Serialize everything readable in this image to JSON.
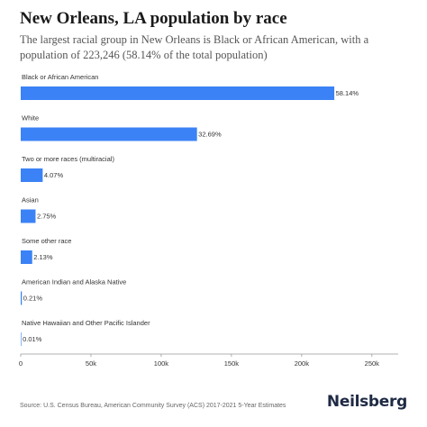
{
  "title": "New Orleans, LA population by race",
  "subtitle": "The largest racial group in New Orleans is Black or African American, with a population of 223,246 (58.14% of the total population)",
  "source": "Source: U.S. Census Bureau, American Community Survey (ACS) 2017-2021 5-Year Estimates",
  "brand": "Neilsberg",
  "colors": {
    "bar": "#3b82f6",
    "axis": "#999999",
    "text": "#333333"
  },
  "chart_data": {
    "type": "bar",
    "orientation": "horizontal",
    "categories": [
      "Black or African American",
      "White",
      "Two or more races (multiracial)",
      "Asian",
      "Some other race",
      "American Indian and Alaska Native",
      "Native Hawaiian and Other Pacific Islander"
    ],
    "values": [
      223246,
      125500,
      15630,
      10560,
      8180,
      806,
      38
    ],
    "value_labels": [
      "58.14%",
      "32.69%",
      "4.07%",
      "2.75%",
      "2.13%",
      "0.21%",
      "0.01%"
    ],
    "xlim": [
      0,
      270000
    ],
    "x_ticks": [
      0,
      50000,
      100000,
      150000,
      200000,
      250000
    ],
    "x_tick_labels": [
      "0",
      "50k",
      "100k",
      "150k",
      "200k",
      "250k"
    ],
    "grid": false,
    "legend": "none"
  }
}
